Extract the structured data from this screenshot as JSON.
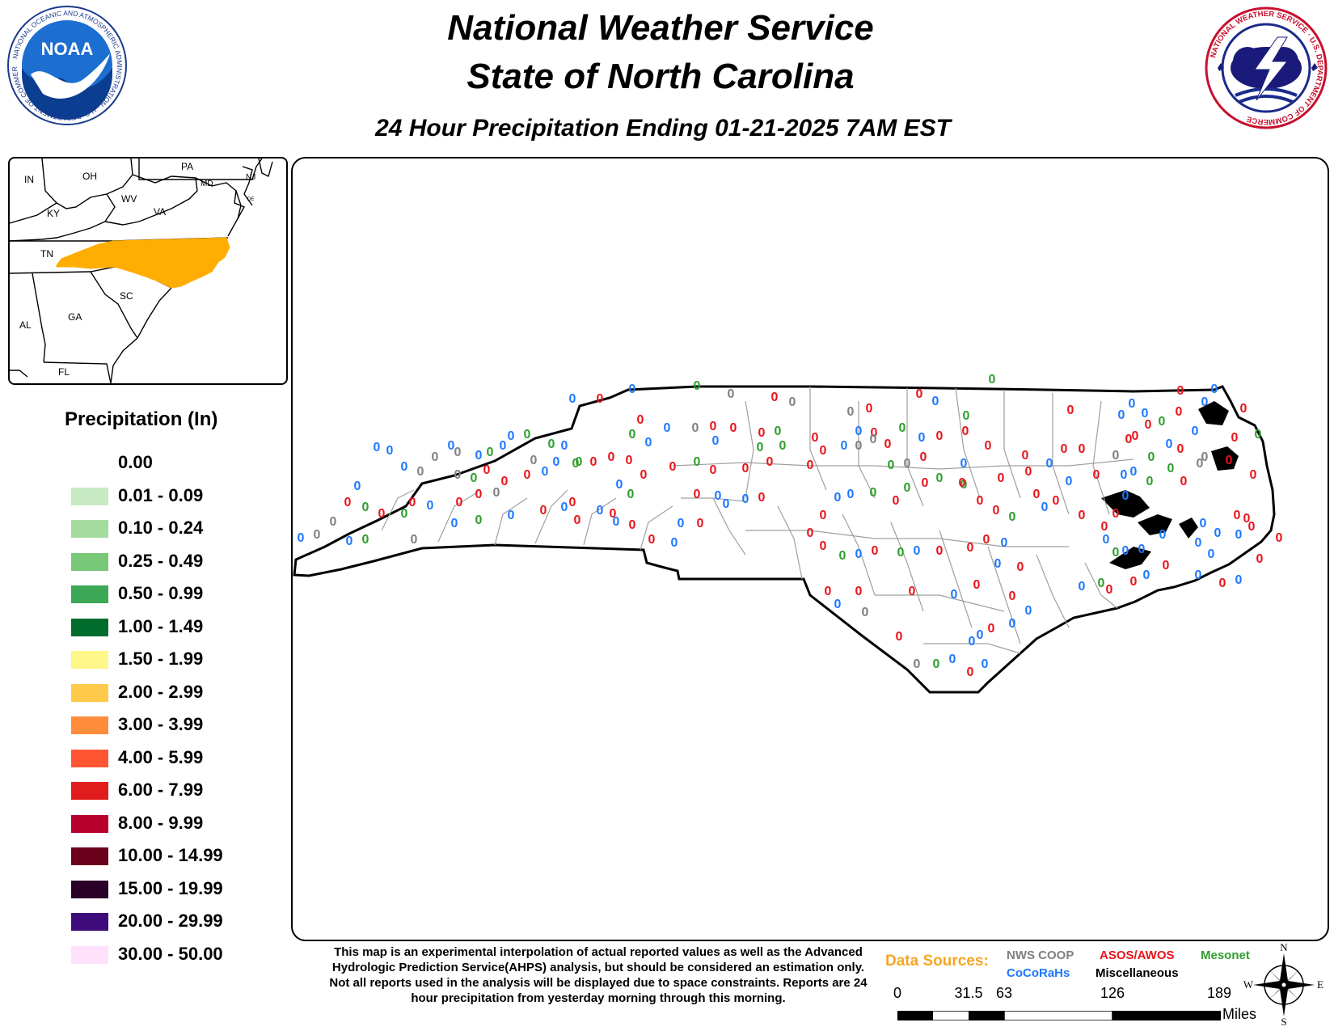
{
  "header": {
    "title_line1": "National Weather Service",
    "title_line2": "State of North Carolina",
    "subtitle": "24 Hour Precipitation Ending 01-21-2025 7AM EST"
  },
  "logos": {
    "noaa": {
      "text": "NOAA",
      "ring_text": "NATIONAL OCEANIC AND ATMOSPHERIC ADMINISTRATION · U.S. DEPARTMENT OF COMMERCE"
    },
    "nws": {
      "ring_text": "NATIONAL WEATHER SERVICE · U.S. DEPARTMENT OF COMMERCE"
    }
  },
  "inset_map": {
    "highlight_color": "#ffad00",
    "state_labels": [
      "IN",
      "OH",
      "PA",
      "NJ",
      "MD",
      "DE",
      "WV",
      "VA",
      "KY",
      "TN",
      "SC",
      "GA",
      "AL",
      "FL"
    ]
  },
  "legend": {
    "title": "Precipitation (In)",
    "items": [
      {
        "label": "0.00",
        "color": "#ffffff"
      },
      {
        "label": "0.01 - 0.09",
        "color": "#c7eac3"
      },
      {
        "label": "0.10 - 0.24",
        "color": "#a4dca0"
      },
      {
        "label": "0.25 - 0.49",
        "color": "#78c878"
      },
      {
        "label": "0.50 - 0.99",
        "color": "#3ca855"
      },
      {
        "label": "1.00 - 1.49",
        "color": "#006d2c"
      },
      {
        "label": "1.50 - 1.99",
        "color": "#fff78a"
      },
      {
        "label": "2.00 - 2.99",
        "color": "#ffc94a"
      },
      {
        "label": "3.00 - 3.99",
        "color": "#ff8c3a"
      },
      {
        "label": "4.00 - 5.99",
        "color": "#ff5533"
      },
      {
        "label": "6.00 - 7.99",
        "color": "#e01c1c"
      },
      {
        "label": "8.00 - 9.99",
        "color": "#b8002c"
      },
      {
        "label": "10.00 - 14.99",
        "color": "#6b001c"
      },
      {
        "label": "15.00 - 19.99",
        "color": "#2a0028"
      },
      {
        "label": "20.00 - 29.99",
        "color": "#3d0b7a"
      },
      {
        "label": "30.00 - 50.00",
        "color": "#ffe1fc"
      }
    ]
  },
  "map": {
    "station_value": "0",
    "source_colors": {
      "coop": "#808080",
      "cocorahs": "#1e78ff",
      "asos": "#e8141c",
      "mesonet": "#2e9e2e"
    }
  },
  "disclaimer": "This map is an experimental interpolation of actual reported values as well as the Advanced Hydrologic Prediction Service(AHPS) analysis, but should be considered an estimation only. Not all reports used in the analysis will be displayed due to space constraints. Reports are 24 hour precipitation from yesterday morning through this morning.",
  "sources": {
    "label": "Data Sources:",
    "coop": "NWS COOP",
    "cocorahs": "CoCoRaHs",
    "asos": "ASOS/AWOS",
    "misc": "Miscellaneous",
    "mesonet": "Mesonet"
  },
  "scale_bar": {
    "ticks": [
      "0",
      "31.5",
      "63",
      "126",
      "189"
    ],
    "unit": "Miles"
  },
  "compass": {
    "n": "N",
    "e": "E",
    "s": "S",
    "w": "W"
  }
}
